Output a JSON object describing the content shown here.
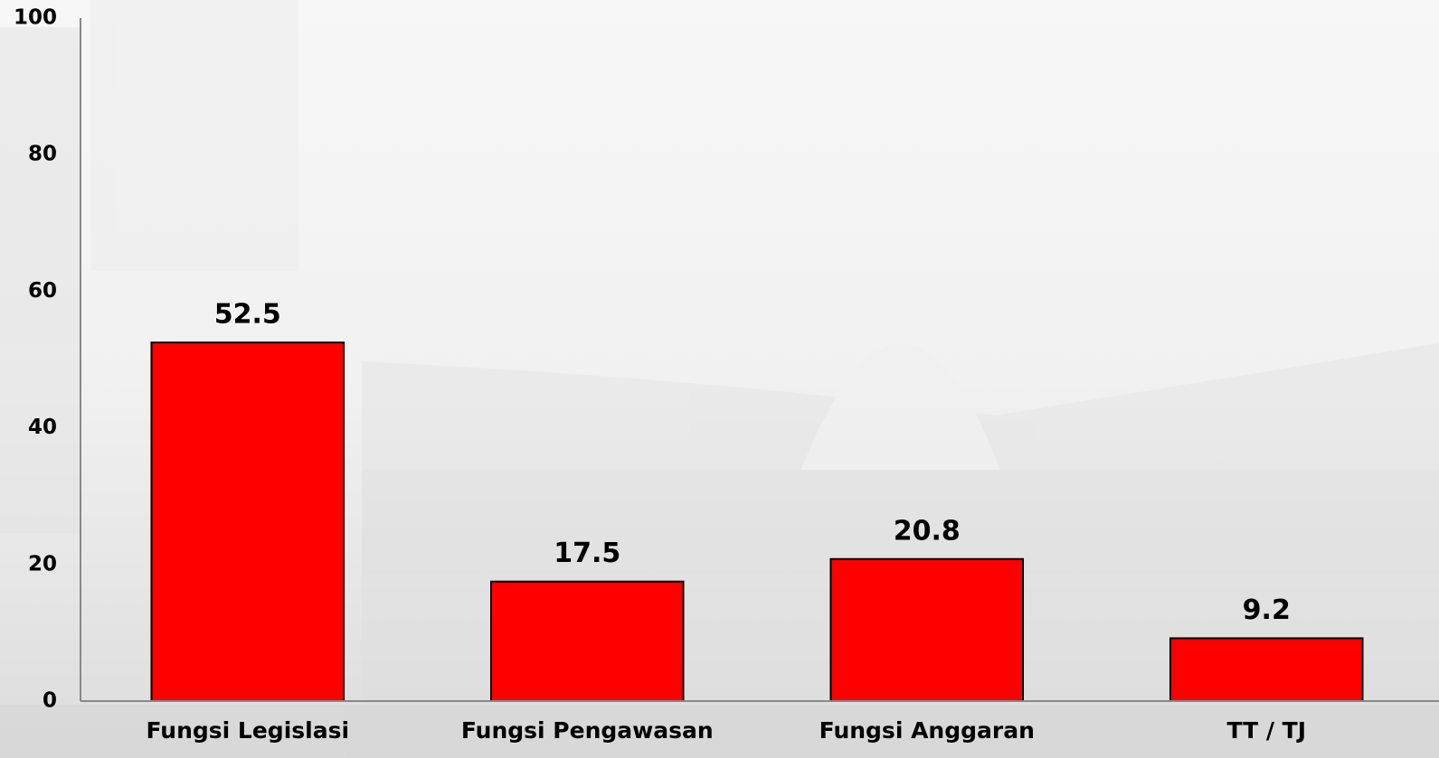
{
  "chart_data": {
    "type": "bar",
    "categories": [
      "Fungsi Legislasi",
      "Fungsi Pengawasan",
      "Fungsi Anggaran",
      "TT / TJ"
    ],
    "values": [
      52.5,
      17.5,
      20.8,
      9.2
    ],
    "color": "#ff0000",
    "ylim": [
      0,
      100
    ],
    "yticks": [
      0,
      20,
      40,
      60,
      80,
      100
    ],
    "grid": false
  }
}
